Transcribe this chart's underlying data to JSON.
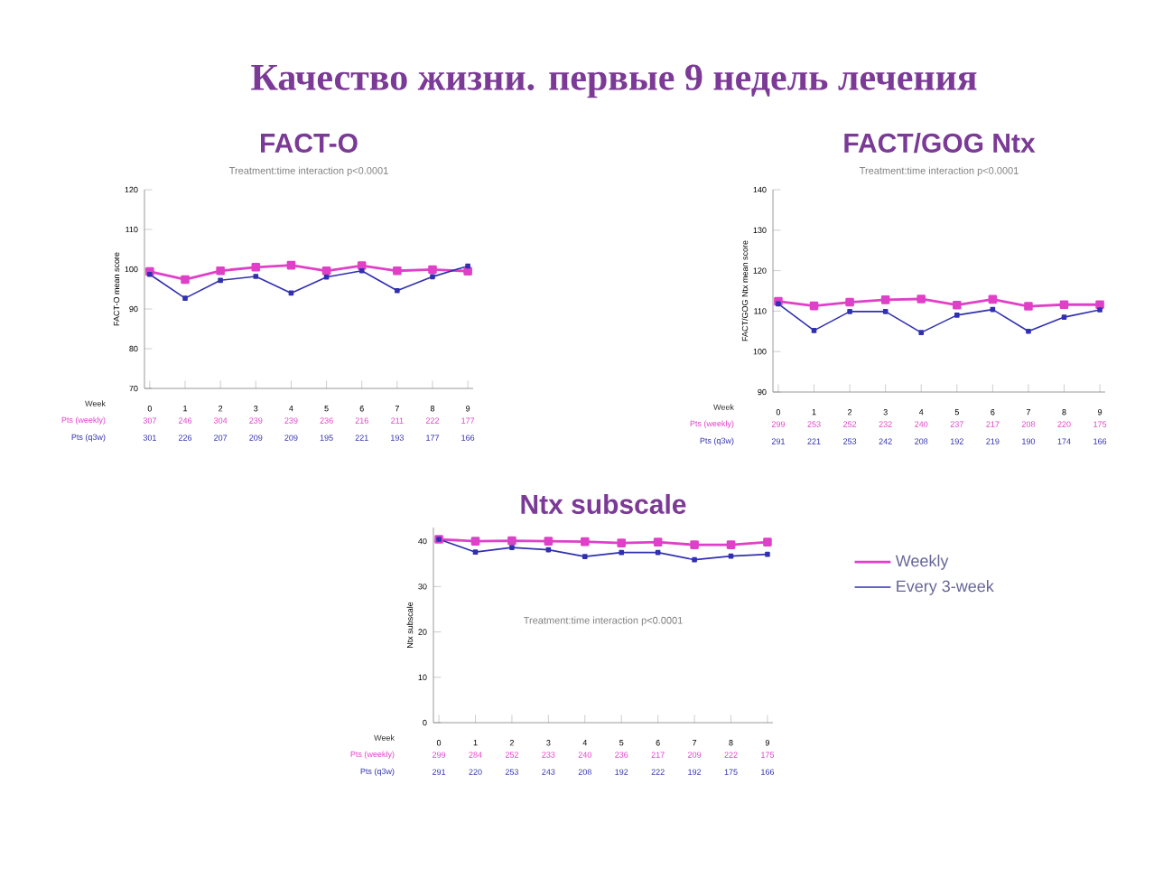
{
  "chart_data": [
    {
      "type": "other",
      "title": "Качество жизни. первые 9 недель лечения"
    },
    {
      "type": "line",
      "title": "FACT-O",
      "subtitle": "Treatment:time interaction p<0.0001",
      "ylabel": "FACT-O mean score",
      "xlabel": "Week",
      "categories": [
        "0",
        "1",
        "2",
        "3",
        "4",
        "5",
        "6",
        "7",
        "8",
        "9"
      ],
      "series": [
        {
          "color": "#e040c8",
          "values": [
            99.4,
            97.4,
            99.6,
            100.5,
            101,
            99.6,
            100.9,
            99.6,
            99.9,
            99.5
          ]
        },
        {
          "color": "#3030b0",
          "values": [
            98.7,
            92.7,
            97.2,
            98.2,
            94,
            98,
            99.6,
            94.6,
            98.1,
            100.8
          ]
        }
      ],
      "ylim": [
        70,
        120
      ],
      "yticks": [
        70,
        80,
        90,
        100,
        110,
        120
      ],
      "marker": "square",
      "grid": false,
      "legend": false,
      "annotations": [
        "Pts (weekly)",
        "307",
        "246",
        "304",
        "239",
        "239",
        "236",
        "216",
        "211",
        "222",
        "177",
        "Pts (q3w)",
        "301",
        "226",
        "207",
        "209",
        "209",
        "195",
        "221",
        "193",
        "177",
        "166"
      ]
    },
    {
      "type": "line",
      "title": "FACT/GOG Ntx",
      "subtitle": "Treatment:time interaction p<0.0001",
      "ylabel": "FACT/GOG Ntx mean score",
      "xlabel": "Week",
      "categories": [
        "0",
        "1",
        "2",
        "3",
        "4",
        "5",
        "6",
        "7",
        "8",
        "9"
      ],
      "series": [
        {
          "color": "#e040c8",
          "values": [
            112.4,
            111.3,
            112.2,
            112.8,
            113,
            111.5,
            112.9,
            111.2,
            111.6,
            111.6
          ]
        },
        {
          "color": "#3030b0",
          "values": [
            111.8,
            105.2,
            109.9,
            109.9,
            104.7,
            109,
            110.4,
            105,
            108.5,
            110.3
          ]
        }
      ],
      "ylim": [
        90,
        140
      ],
      "yticks": [
        90,
        100,
        110,
        120,
        130,
        140
      ],
      "marker": "square",
      "grid": false,
      "legend": false,
      "annotations": [
        "Pts (weekly)",
        "299",
        "253",
        "252",
        "232",
        "240",
        "237",
        "217",
        "208",
        "220",
        "175",
        "Pts (q3w)",
        "291",
        "221",
        "253",
        "242",
        "208",
        "192",
        "219",
        "190",
        "174",
        "166"
      ]
    },
    {
      "type": "line",
      "title": "Ntx subscale",
      "ylabel": "Ntx subscale",
      "xlabel": "Week",
      "categories": [
        "0",
        "1",
        "2",
        "3",
        "4",
        "5",
        "6",
        "7",
        "8",
        "9"
      ],
      "series": [
        {
          "name": "Weekly",
          "color": "#e040c8",
          "values": [
            40.4,
            40,
            40.1,
            40,
            39.9,
            39.6,
            39.8,
            39.2,
            39.2,
            39.8
          ]
        },
        {
          "name": "Every 3-week",
          "color": "#3030b0",
          "values": [
            40.4,
            37.6,
            38.6,
            38.1,
            36.6,
            37.5,
            37.5,
            35.9,
            36.7,
            37.1
          ]
        }
      ],
      "ylim": [
        0,
        43
      ],
      "yticks": [
        0,
        10,
        20,
        30,
        40
      ],
      "marker": "square",
      "grid": false,
      "legend": "right",
      "annotations": [
        "Treatment:time interaction p<0.0001",
        "Pts (weekly)",
        "299",
        "284",
        "252",
        "233",
        "240",
        "236",
        "217",
        "209",
        "222",
        "175",
        "Pts (q3w)",
        "291",
        "220",
        "253",
        "243",
        "208",
        "192",
        "222",
        "192",
        "175",
        "166"
      ]
    }
  ]
}
